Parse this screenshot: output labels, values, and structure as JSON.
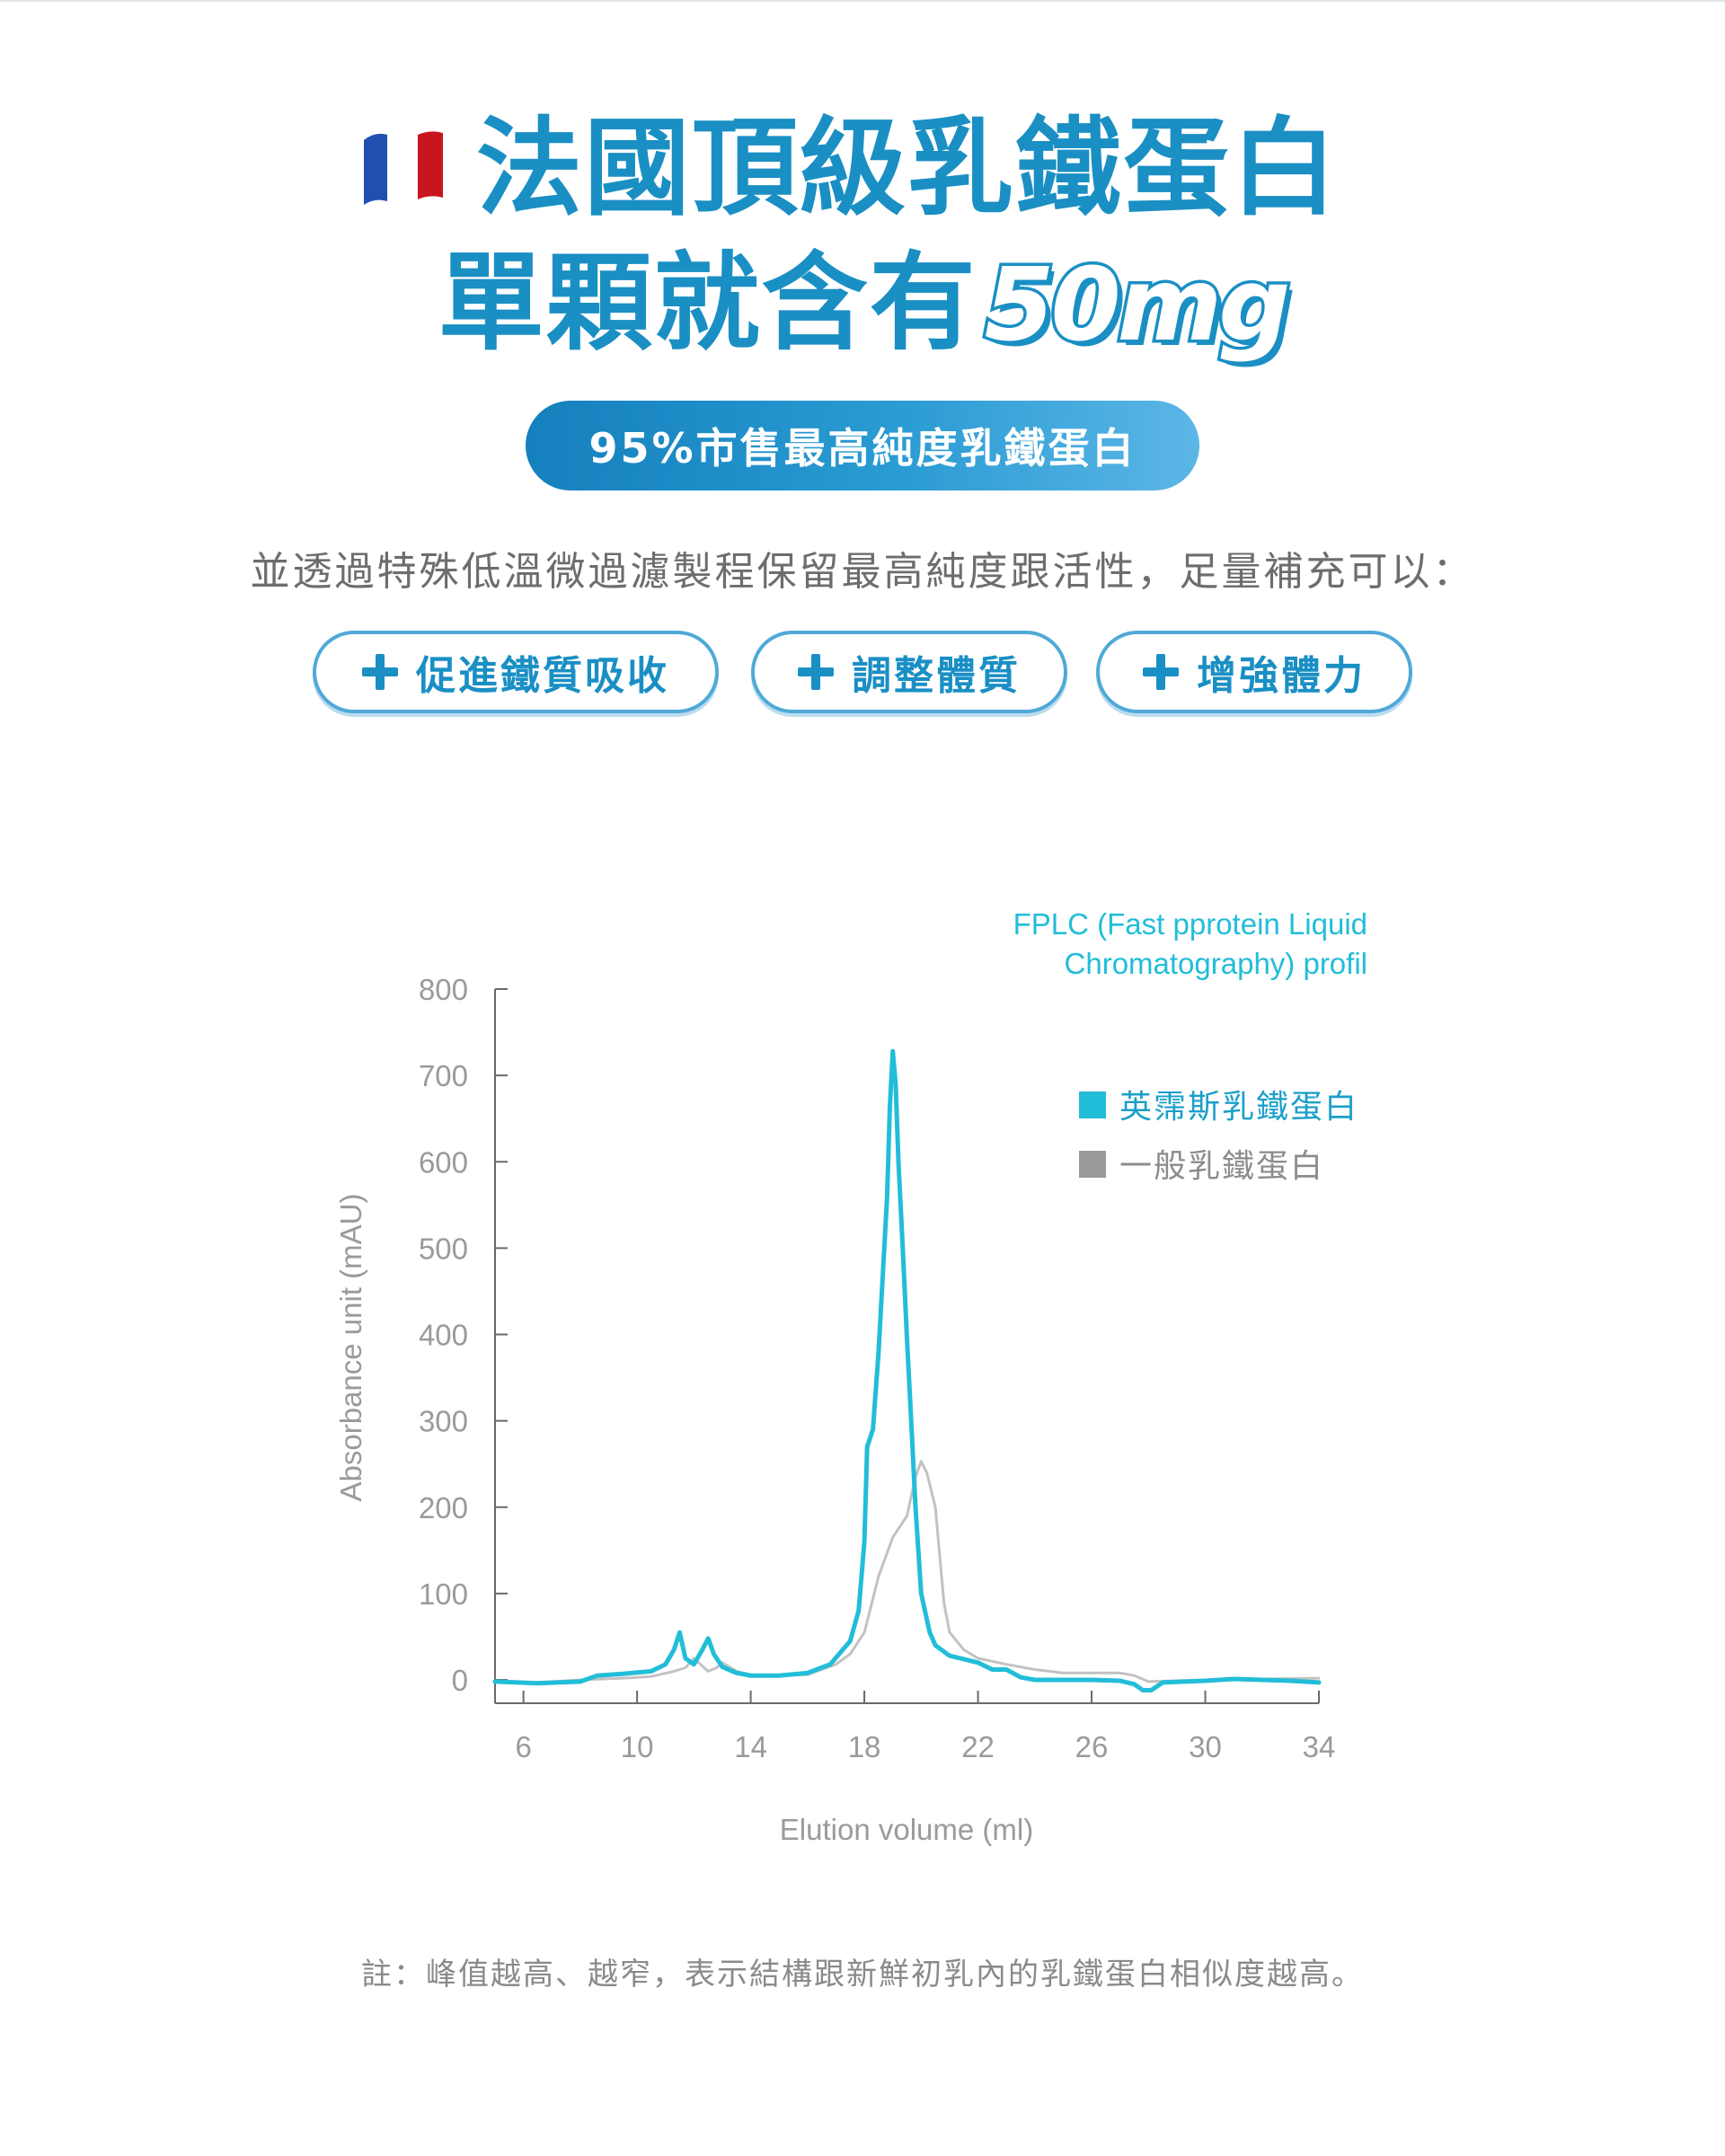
{
  "header": {
    "line1": "法國頂級乳鐵蛋白",
    "line2_text": "單顆就含有",
    "line2_dose": "50mg"
  },
  "badge": {
    "label": "95%市售最高純度乳鐵蛋白"
  },
  "intro": {
    "text": "並透過特殊低溫微過濾製程保留最高純度跟活性，足量補充可以："
  },
  "benefits": [
    {
      "label": "促進鐵質吸收"
    },
    {
      "label": "調整體質"
    },
    {
      "label": "增強體力"
    }
  ],
  "colors": {
    "accent": "#1a8fc4",
    "series_primary": "#22bdd8",
    "series_secondary": "#c2c2c2",
    "flag_blue": "#1f4fb0",
    "flag_red": "#c8151d"
  },
  "chart_data": {
    "type": "line",
    "title_lines": [
      "FPLC (Fast pprotein Liquid",
      "Chromatography) profil"
    ],
    "xlabel": "Elution volume (ml)",
    "ylabel": "Absorbance unit (mAU)",
    "xlim": [
      5,
      34
    ],
    "ylim": [
      -25,
      800
    ],
    "xticks": [
      6,
      10,
      14,
      18,
      22,
      26,
      30,
      34
    ],
    "yticks": [
      0,
      100,
      200,
      300,
      400,
      500,
      600,
      700,
      800
    ],
    "grid": false,
    "legend_position": "top-right",
    "series": [
      {
        "name": "英霈斯乳鐵蛋白",
        "color": "#22bdd8",
        "x": [
          5.0,
          6.5,
          8.0,
          8.6,
          9.5,
          10.5,
          11.0,
          11.3,
          11.5,
          11.7,
          12.0,
          12.3,
          12.5,
          12.7,
          13.0,
          13.5,
          14.0,
          15.0,
          16.0,
          16.8,
          17.5,
          17.8,
          18.0,
          18.1,
          18.3,
          18.5,
          18.8,
          18.9,
          19.0,
          19.1,
          19.2,
          19.35,
          19.5,
          19.65,
          19.8,
          20.0,
          20.3,
          20.5,
          21.0,
          21.5,
          22.0,
          22.5,
          23.0,
          23.5,
          24.0,
          25.0,
          26.0,
          27.0,
          27.5,
          27.8,
          28.1,
          28.5,
          30.0,
          31.0,
          32.0,
          33.0,
          34.0
        ],
        "y": [
          -2,
          -4,
          -2,
          5,
          7,
          10,
          18,
          35,
          55,
          25,
          18,
          35,
          48,
          30,
          15,
          8,
          5,
          5,
          8,
          18,
          45,
          80,
          160,
          270,
          290,
          380,
          560,
          665,
          728,
          690,
          600,
          500,
          395,
          300,
          200,
          100,
          55,
          40,
          28,
          24,
          20,
          12,
          12,
          3,
          0,
          0,
          0,
          -1,
          -5,
          -12,
          -12,
          -3,
          -1,
          1,
          0,
          -1,
          -3
        ]
      },
      {
        "name": "一般乳鐵蛋白",
        "color": "#c2c2c2",
        "x": [
          5.0,
          6.5,
          8.0,
          9.5,
          10.5,
          11.3,
          11.7,
          12.0,
          12.5,
          12.8,
          13.0,
          13.5,
          14.0,
          15.0,
          16.0,
          17.0,
          17.5,
          18.0,
          18.5,
          19.0,
          19.5,
          19.8,
          20.0,
          20.2,
          20.5,
          20.8,
          21.0,
          21.5,
          22.0,
          23.0,
          24.0,
          25.0,
          26.0,
          27.0,
          27.5,
          28.0,
          30.0,
          32.0,
          34.0
        ],
        "y": [
          -2,
          -3,
          0,
          2,
          4,
          10,
          14,
          25,
          10,
          14,
          20,
          10,
          6,
          5,
          6,
          18,
          30,
          55,
          120,
          165,
          190,
          235,
          253,
          240,
          200,
          90,
          55,
          35,
          25,
          18,
          12,
          8,
          8,
          8,
          5,
          -2,
          0,
          1,
          2
        ]
      }
    ]
  },
  "footnote": {
    "text": "註：峰值越高、越窄，表示結構跟新鮮初乳內的乳鐵蛋白相似度越高。"
  }
}
